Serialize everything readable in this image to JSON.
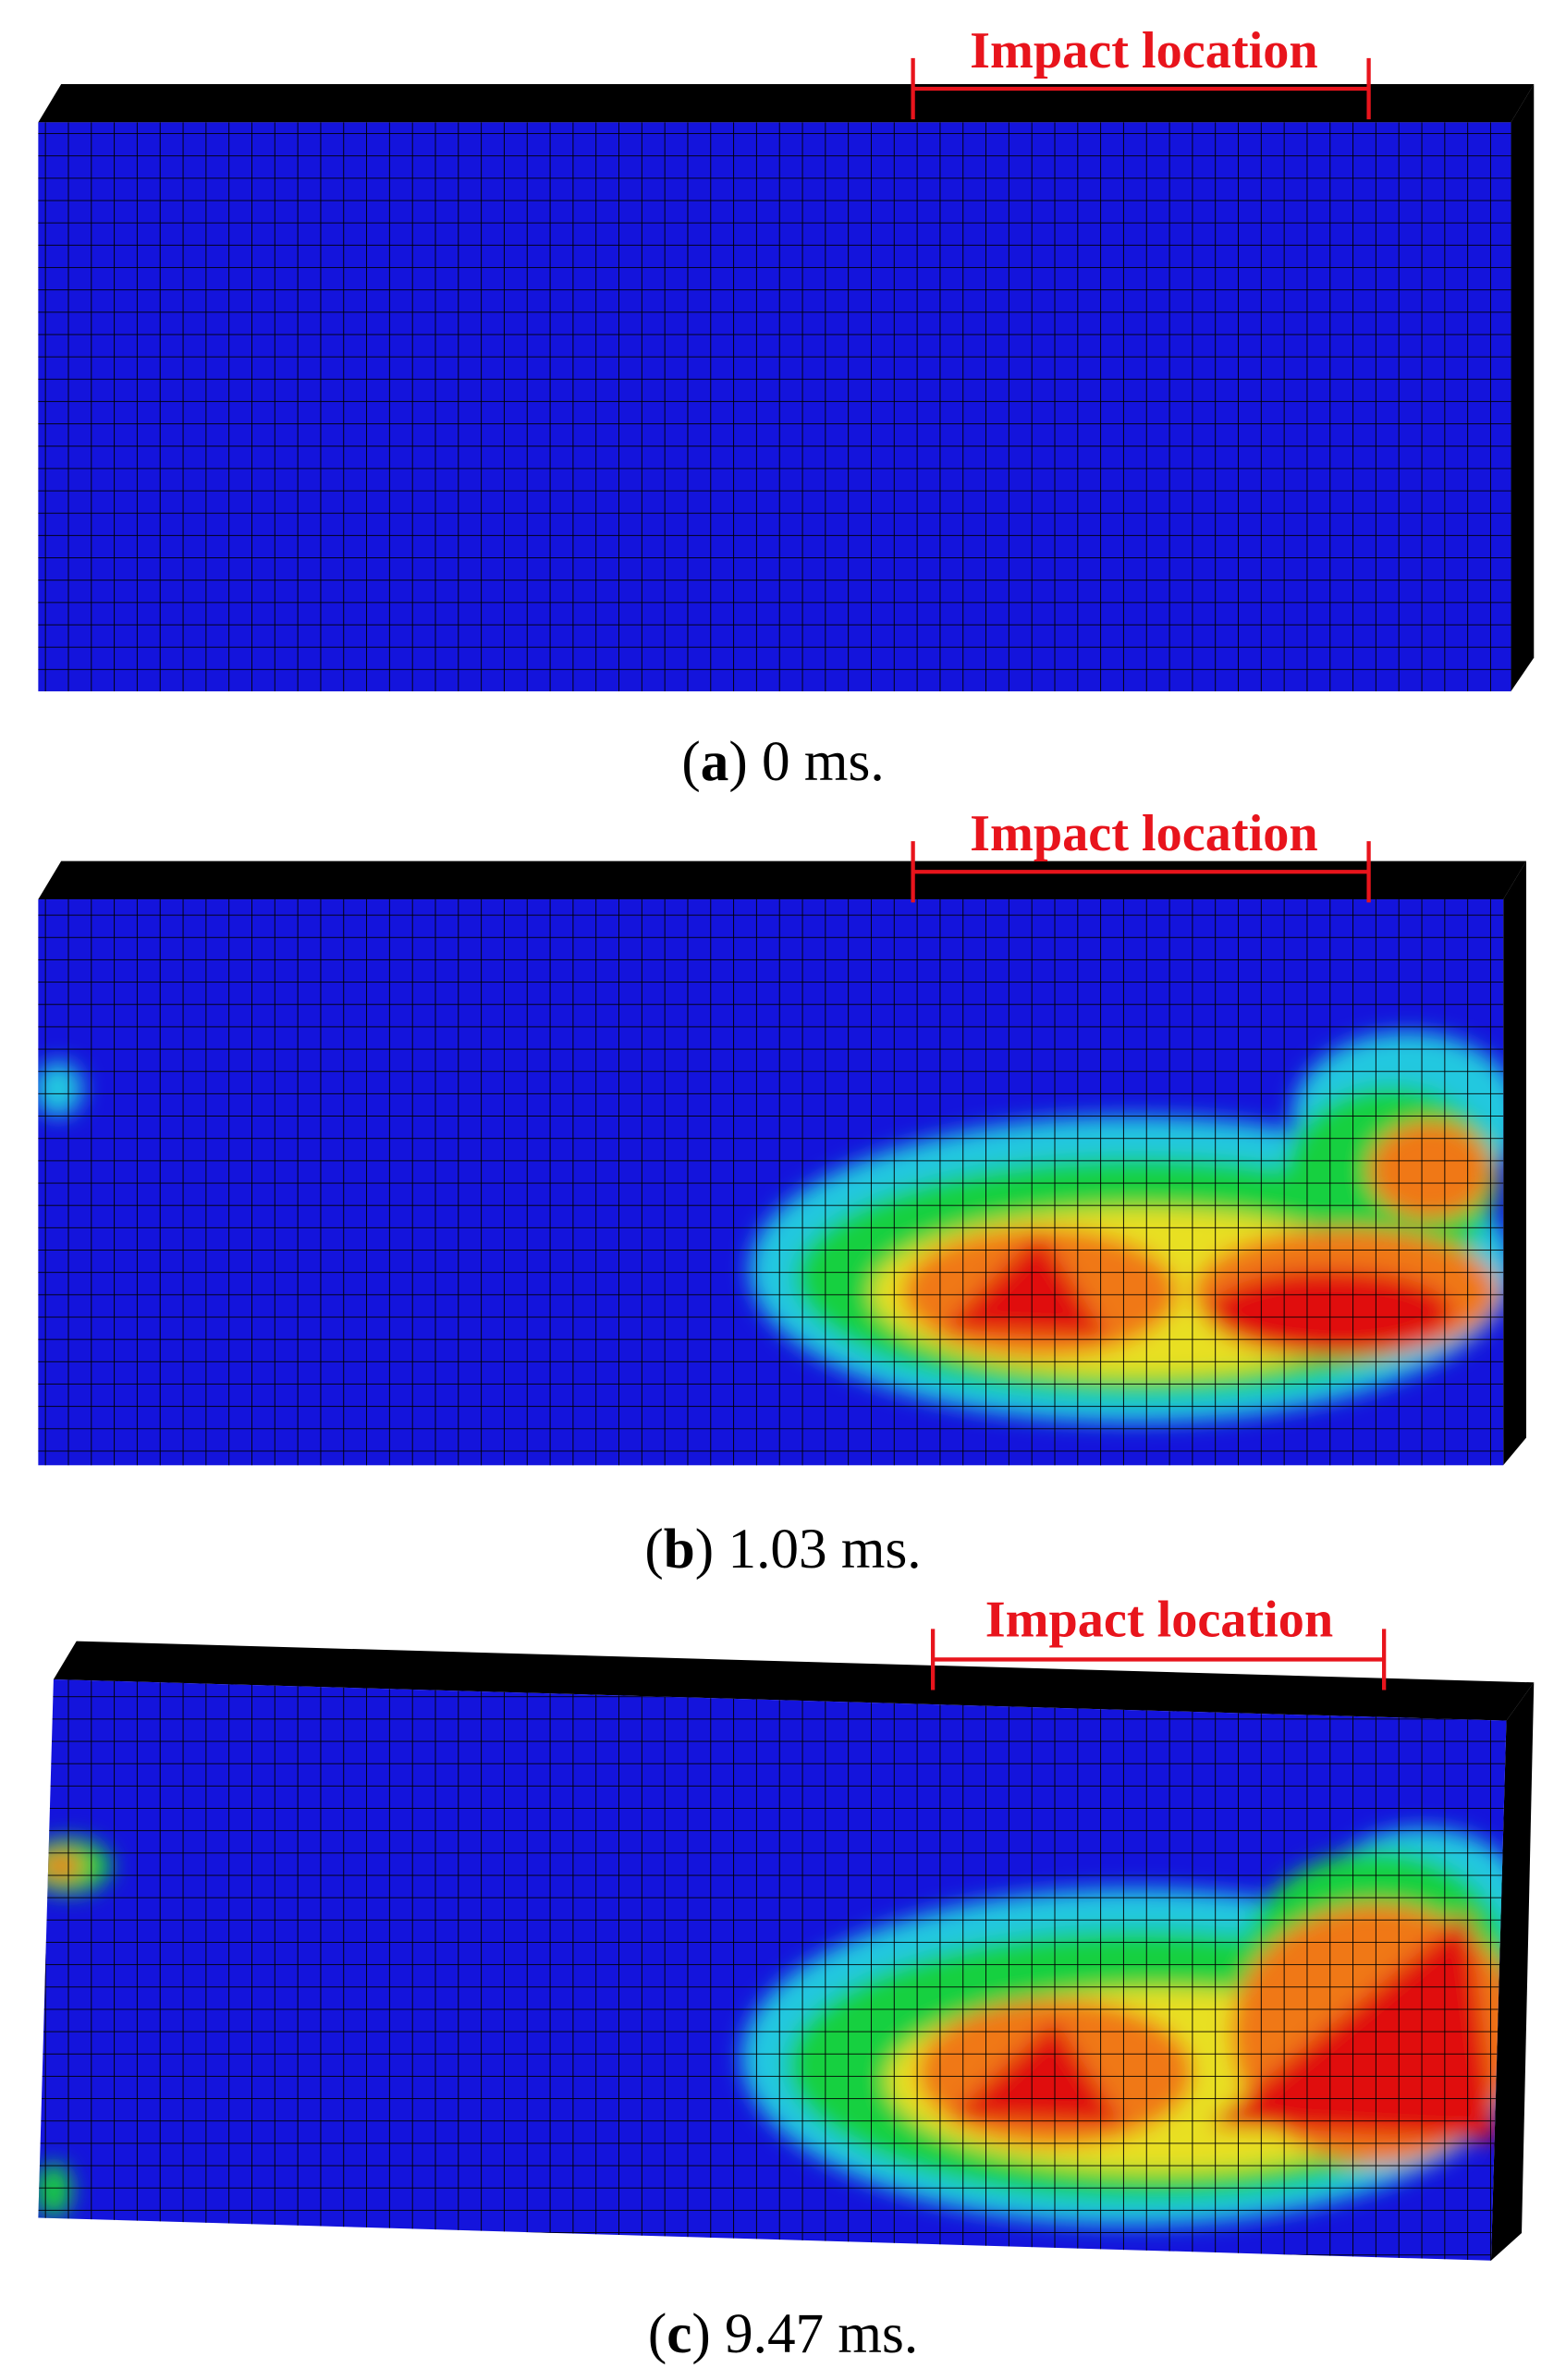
{
  "panels": [
    {
      "annotation": "Impact location",
      "caption": [
        "(",
        "a",
        ") 0 ms."
      ]
    },
    {
      "annotation": "Impact location",
      "caption": [
        "(",
        "b",
        ") 1.03 ms."
      ]
    },
    {
      "annotation": "Impact location",
      "caption": [
        "(",
        "c",
        ") 9.47 ms."
      ]
    }
  ]
}
